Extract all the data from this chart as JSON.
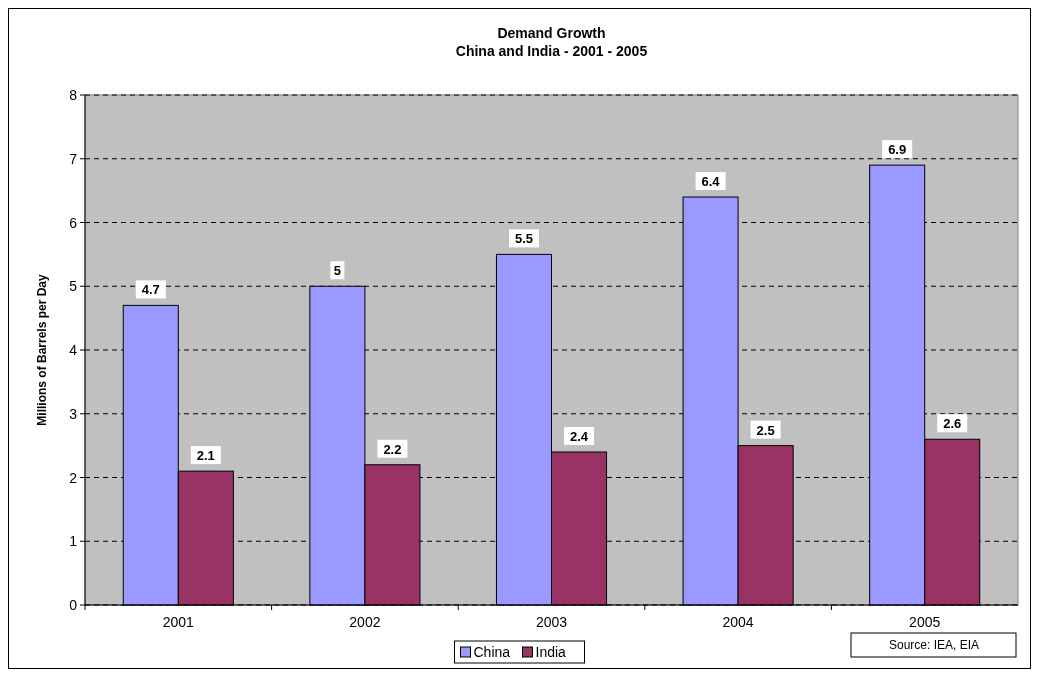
{
  "chart_data": {
    "type": "bar",
    "title": "Demand Growth",
    "subtitle": "China and India - 2001 - 2005",
    "ylabel": "Millions of Barrels per Day",
    "categories": [
      "2001",
      "2002",
      "2003",
      "2004",
      "2005"
    ],
    "series": [
      {
        "name": "China",
        "color": "#9999ff",
        "values": [
          4.7,
          5,
          5.5,
          6.4,
          6.9
        ]
      },
      {
        "name": "India",
        "color": "#993366",
        "values": [
          2.1,
          2.2,
          2.4,
          2.5,
          2.6
        ]
      }
    ],
    "ylim": [
      0,
      8
    ],
    "yticks": [
      0,
      1,
      2,
      3,
      4,
      5,
      6,
      7,
      8
    ],
    "grid": "y",
    "legend": "bottom",
    "data_labels": true,
    "annotations": [
      "Source: IEA, EIA"
    ]
  }
}
